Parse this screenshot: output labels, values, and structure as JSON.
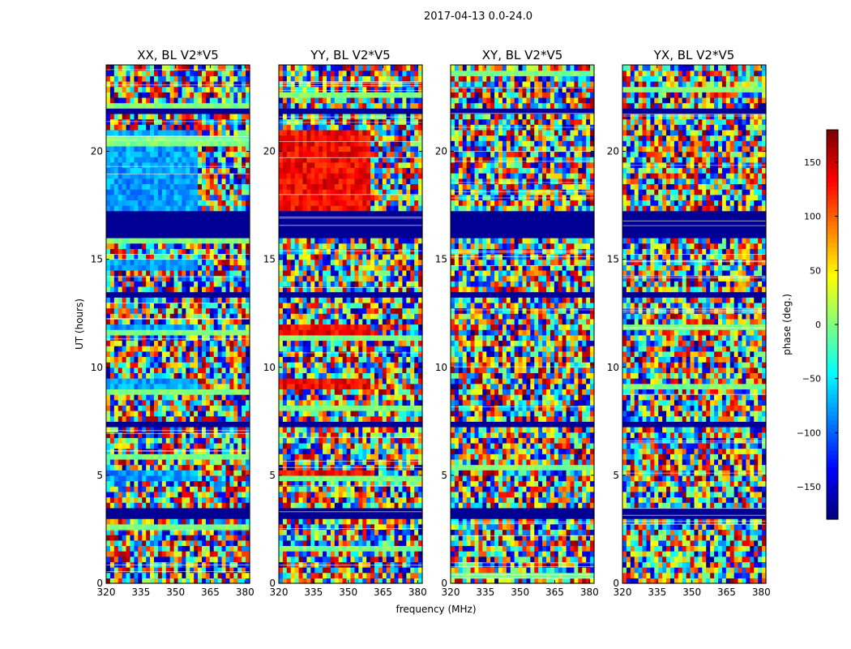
{
  "figure_title": "2017-04-13 0.0-24.0",
  "chart_data": {
    "type": "heatmap",
    "title": "2017-04-13 0.0-24.0",
    "xlabel": "frequency (MHz)",
    "ylabel": "UT (hours)",
    "xlim": [
      320,
      382
    ],
    "ylim": [
      0,
      24
    ],
    "x_ticks": [
      320,
      335,
      350,
      365,
      380
    ],
    "y_ticks": [
      0,
      5,
      10,
      15,
      20
    ],
    "panels": [
      {
        "title": "XX, BL V2*V5",
        "polarization": "XX",
        "baseline": "V2*V5"
      },
      {
        "title": "YY, BL V2*V5",
        "polarization": "YY",
        "baseline": "V2*V5"
      },
      {
        "title": "XY, BL V2*V5",
        "polarization": "XY",
        "baseline": "V2*V5"
      },
      {
        "title": "YX, BL V2*V5",
        "polarization": "YX",
        "baseline": "V2*V5"
      }
    ],
    "colorbar": {
      "label": "phase (deg.)",
      "colormap": "jet",
      "range": [
        -180,
        180
      ],
      "ticks": [
        -150,
        -100,
        -50,
        0,
        50,
        100,
        150
      ]
    }
  }
}
